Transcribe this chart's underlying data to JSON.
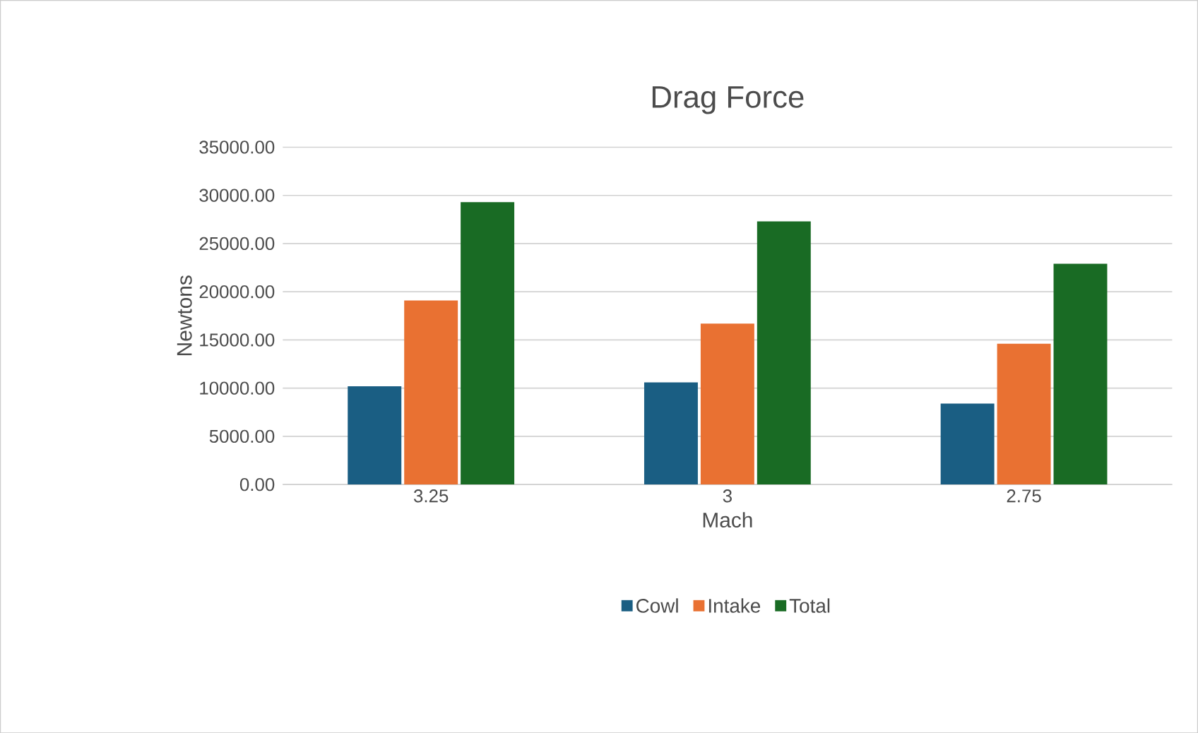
{
  "chart_data": {
    "type": "bar",
    "title": "Drag Force",
    "xlabel": "Mach",
    "ylabel": "Newtons",
    "categories": [
      "3.25",
      "3",
      "2.75"
    ],
    "series": [
      {
        "name": "Cowl",
        "color": "#1a5e83",
        "values": [
          10200,
          10600,
          8400
        ]
      },
      {
        "name": "Intake",
        "color": "#e97132",
        "values": [
          19100,
          16700,
          14600
        ]
      },
      {
        "name": "Total",
        "color": "#196b24",
        "values": [
          29300,
          27300,
          22900
        ]
      }
    ],
    "ylim": [
      0,
      35000
    ],
    "yticks": [
      {
        "value": 0,
        "label": "0.00"
      },
      {
        "value": 5000,
        "label": "5000.00"
      },
      {
        "value": 10000,
        "label": "10000.00"
      },
      {
        "value": 15000,
        "label": "15000.00"
      },
      {
        "value": 20000,
        "label": "20000.00"
      },
      {
        "value": 25000,
        "label": "25000.00"
      },
      {
        "value": 30000,
        "label": "30000.00"
      },
      {
        "value": 35000,
        "label": "35000.00"
      }
    ],
    "grid": "y",
    "legend": "bottom"
  }
}
